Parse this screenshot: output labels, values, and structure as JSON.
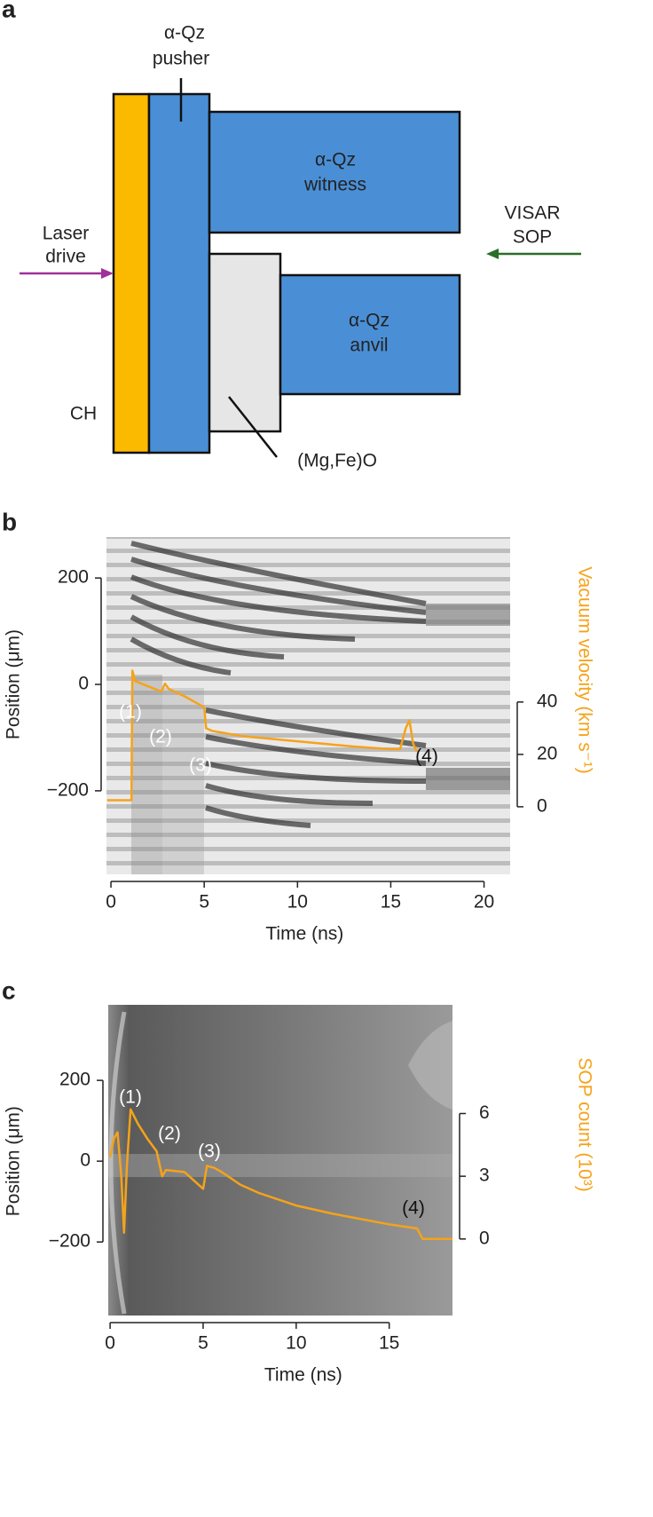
{
  "panels": {
    "a": "a",
    "b": "b",
    "c": "c"
  },
  "diagram": {
    "pusher_label": [
      "α-Qz",
      "pusher"
    ],
    "witness_label": [
      "α-Qz",
      "witness"
    ],
    "anvil_label": [
      "α-Qz",
      "anvil"
    ],
    "probe_label": [
      "VISAR",
      "SOP"
    ],
    "drive_label": [
      "Laser",
      "drive"
    ],
    "ablator_label": "CH",
    "sample_label": "(Mg,Fe)O"
  },
  "chart_data": [
    {
      "type": "line",
      "xlabel": "Time (ns)",
      "ylabel": "Position (μm)",
      "y2label": "Vacuum velocity (km s⁻¹)",
      "xlim": [
        -0.24,
        21.4
      ],
      "xticks": [
        0,
        5,
        10,
        15,
        20
      ],
      "ylim": [
        -357,
        277
      ],
      "yticks": [
        200,
        0,
        {
          "value": -200,
          "label": "−200"
        }
      ],
      "y2lim": [
        -25.8,
        103
      ],
      "y2ticks": [
        0,
        20,
        40
      ],
      "x": [
        -0.2,
        1.1,
        1.15,
        1.3,
        2.0,
        2.7,
        2.9,
        3.1,
        4.0,
        5.0,
        5.1,
        5.4,
        7,
        10,
        13,
        15,
        15.5,
        15.8,
        16.0,
        16.2,
        16.4
      ],
      "series": [
        {
          "color": "#f5a31a",
          "axis": "y2",
          "values": [
            2.5,
            2.5,
            52,
            48,
            46,
            44,
            47,
            45,
            42,
            38,
            30,
            29,
            27,
            25,
            23,
            22,
            22,
            30,
            33,
            24,
            21
          ]
        }
      ],
      "annotations": [
        "(1)",
        "(2)",
        "(3)",
        "(4)"
      ]
    },
    {
      "type": "line",
      "xlabel": "Time (ns)",
      "ylabel": "Position (μm)",
      "y2label": "SOP count (10³)",
      "xlim": [
        -0.1,
        18.4
      ],
      "xticks": [
        0,
        5,
        10,
        15
      ],
      "ylim": [
        -382,
        387
      ],
      "yticks": [
        200,
        0,
        {
          "value": -200,
          "label": "−200"
        }
      ],
      "y2lim": [
        -3.66,
        11.2
      ],
      "y2ticks": [
        0,
        3,
        6
      ],
      "x": [
        0,
        0.2,
        0.4,
        0.6,
        0.75,
        0.9,
        1.1,
        1.5,
        2.0,
        2.5,
        2.8,
        3.0,
        4.0,
        5.0,
        5.2,
        5.6,
        6,
        7,
        8,
        10,
        12,
        15,
        16.5,
        16.8,
        18.4
      ],
      "series": [
        {
          "color": "#f5a31a",
          "axis": "y2",
          "values": [
            3.9,
            4.8,
            5.1,
            3.0,
            0.3,
            3.5,
            6.2,
            5.5,
            4.8,
            4.2,
            3.0,
            3.3,
            3.2,
            2.4,
            3.5,
            3.4,
            3.2,
            2.6,
            2.2,
            1.6,
            1.2,
            0.7,
            0.5,
            0,
            0
          ]
        }
      ],
      "annotations": [
        "(1)",
        "(2)",
        "(3)",
        "(4)"
      ]
    }
  ]
}
